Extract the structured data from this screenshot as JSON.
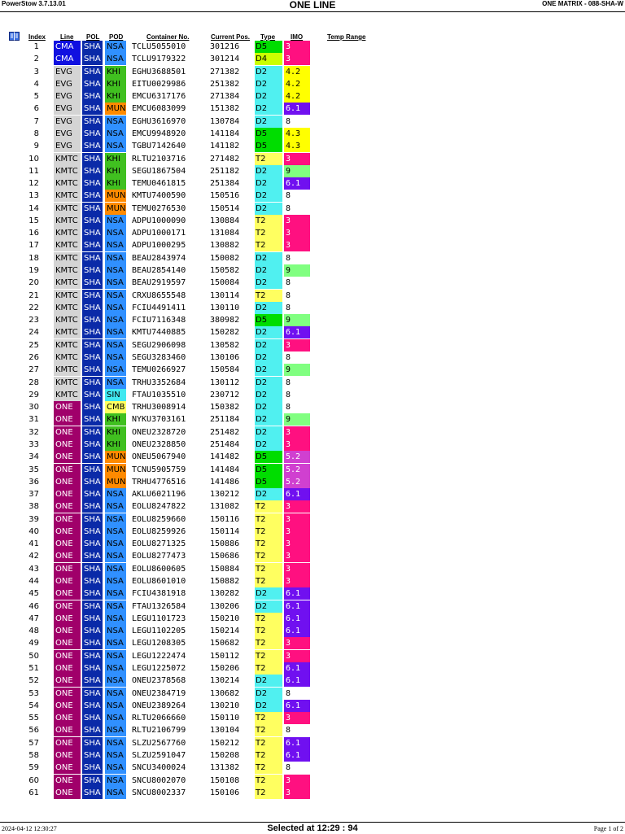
{
  "header": {
    "app": "PowerStow 3.7.13.01",
    "title": "ONE LINE",
    "matrix": "ONE MATRIX - 088-SHA-W"
  },
  "icons": {
    "book": "book-icon"
  },
  "columns": {
    "index": "Index",
    "line": "Line",
    "pol": "POL",
    "pod": "POD",
    "container": "Container No.",
    "position": "Current Pos.",
    "type": "Type",
    "imo": "IMO",
    "temp": "Temp Range"
  },
  "colors": {
    "line": {
      "CMA": "#1010e0",
      "EVG": "#d4d4d4",
      "KMTC": "#d4d4d4",
      "ONE": "#a0006a"
    },
    "pol": "#0a2aa8",
    "pod": {
      "NSA": "#3090ff",
      "KHI": "#40c020",
      "MUN": "#ff8a00",
      "SIN": "#40e8f0",
      "CMB": "#ffff60"
    },
    "type": {
      "D5": "#00dd00",
      "D4": "#ccff00",
      "D2": "#50f0f0",
      "T2": "#ffff60"
    },
    "imo": {
      "3": "#ff1080",
      "4.2": "#ffff00",
      "4.3": "#ffff00",
      "6.1": "#7010f0",
      "9": "#80ff80",
      "5.2": "#d040d0",
      "8": "#ffffff"
    }
  },
  "rows": [
    {
      "i": "1",
      "line": "CMA",
      "pol": "SHA",
      "pod": "NSA",
      "c": "TCLU5055010",
      "p": "301216",
      "t": "D5",
      "imo": "3"
    },
    {
      "i": "2",
      "line": "CMA",
      "pol": "SHA",
      "pod": "NSA",
      "c": "TCLU9179322",
      "p": "301214",
      "t": "D4",
      "imo": "3"
    },
    {
      "i": "3",
      "line": "EVG",
      "pol": "SHA",
      "pod": "KHI",
      "c": "EGHU3688501",
      "p": "271382",
      "t": "D2",
      "imo": "4.2"
    },
    {
      "i": "4",
      "line": "EVG",
      "pol": "SHA",
      "pod": "KHI",
      "c": "EITU0029986",
      "p": "251382",
      "t": "D2",
      "imo": "4.2"
    },
    {
      "i": "5",
      "line": "EVG",
      "pol": "SHA",
      "pod": "KHI",
      "c": "EMCU6317176",
      "p": "271384",
      "t": "D2",
      "imo": "4.2"
    },
    {
      "i": "6",
      "line": "EVG",
      "pol": "SHA",
      "pod": "MUN",
      "c": "EMCU6083099",
      "p": "151382",
      "t": "D2",
      "imo": "6.1"
    },
    {
      "i": "7",
      "line": "EVG",
      "pol": "SHA",
      "pod": "NSA",
      "c": "EGHU3616970",
      "p": "130784",
      "t": "D2",
      "imo": "8"
    },
    {
      "i": "8",
      "line": "EVG",
      "pol": "SHA",
      "pod": "NSA",
      "c": "EMCU9948920",
      "p": "141184",
      "t": "D5",
      "imo": "4.3"
    },
    {
      "i": "9",
      "line": "EVG",
      "pol": "SHA",
      "pod": "NSA",
      "c": "TGBU7142640",
      "p": "141182",
      "t": "D5",
      "imo": "4.3"
    },
    {
      "i": "10",
      "line": "KMTC",
      "pol": "SHA",
      "pod": "KHI",
      "c": "RLTU2103716",
      "p": "271482",
      "t": "T2",
      "imo": "3"
    },
    {
      "i": "11",
      "line": "KMTC",
      "pol": "SHA",
      "pod": "KHI",
      "c": "SEGU1867504",
      "p": "251182",
      "t": "D2",
      "imo": "9"
    },
    {
      "i": "12",
      "line": "KMTC",
      "pol": "SHA",
      "pod": "KHI",
      "c": "TEMU0461815",
      "p": "251384",
      "t": "D2",
      "imo": "6.1"
    },
    {
      "i": "13",
      "line": "KMTC",
      "pol": "SHA",
      "pod": "MUN",
      "c": "KMTU7400590",
      "p": "150516",
      "t": "D2",
      "imo": "8"
    },
    {
      "i": "14",
      "line": "KMTC",
      "pol": "SHA",
      "pod": "MUN",
      "c": "TEMU0276530",
      "p": "150514",
      "t": "D2",
      "imo": "8"
    },
    {
      "i": "15",
      "line": "KMTC",
      "pol": "SHA",
      "pod": "NSA",
      "c": "ADPU1000090",
      "p": "130884",
      "t": "T2",
      "imo": "3"
    },
    {
      "i": "16",
      "line": "KMTC",
      "pol": "SHA",
      "pod": "NSA",
      "c": "ADPU1000171",
      "p": "131084",
      "t": "T2",
      "imo": "3"
    },
    {
      "i": "17",
      "line": "KMTC",
      "pol": "SHA",
      "pod": "NSA",
      "c": "ADPU1000295",
      "p": "130882",
      "t": "T2",
      "imo": "3"
    },
    {
      "i": "18",
      "line": "KMTC",
      "pol": "SHA",
      "pod": "NSA",
      "c": "BEAU2843974",
      "p": "150082",
      "t": "D2",
      "imo": "8"
    },
    {
      "i": "19",
      "line": "KMTC",
      "pol": "SHA",
      "pod": "NSA",
      "c": "BEAU2854140",
      "p": "150582",
      "t": "D2",
      "imo": "9"
    },
    {
      "i": "20",
      "line": "KMTC",
      "pol": "SHA",
      "pod": "NSA",
      "c": "BEAU2919597",
      "p": "150084",
      "t": "D2",
      "imo": "8"
    },
    {
      "i": "21",
      "line": "KMTC",
      "pol": "SHA",
      "pod": "NSA",
      "c": "CRXU8655548",
      "p": "130114",
      "t": "T2",
      "imo": "8"
    },
    {
      "i": "22",
      "line": "KMTC",
      "pol": "SHA",
      "pod": "NSA",
      "c": "FCIU4491411",
      "p": "130110",
      "t": "D2",
      "imo": "8"
    },
    {
      "i": "23",
      "line": "KMTC",
      "pol": "SHA",
      "pod": "NSA",
      "c": "FCIU7116348",
      "p": "380982",
      "t": "D5",
      "imo": "9"
    },
    {
      "i": "24",
      "line": "KMTC",
      "pol": "SHA",
      "pod": "NSA",
      "c": "KMTU7440885",
      "p": "150282",
      "t": "D2",
      "imo": "6.1"
    },
    {
      "i": "25",
      "line": "KMTC",
      "pol": "SHA",
      "pod": "NSA",
      "c": "SEGU2906098",
      "p": "130582",
      "t": "D2",
      "imo": "3"
    },
    {
      "i": "26",
      "line": "KMTC",
      "pol": "SHA",
      "pod": "NSA",
      "c": "SEGU3283460",
      "p": "130106",
      "t": "D2",
      "imo": "8"
    },
    {
      "i": "27",
      "line": "KMTC",
      "pol": "SHA",
      "pod": "NSA",
      "c": "TEMU0266927",
      "p": "150584",
      "t": "D2",
      "imo": "9"
    },
    {
      "i": "28",
      "line": "KMTC",
      "pol": "SHA",
      "pod": "NSA",
      "c": "TRHU3352684",
      "p": "130112",
      "t": "D2",
      "imo": "8"
    },
    {
      "i": "29",
      "line": "KMTC",
      "pol": "SHA",
      "pod": "SIN",
      "c": "FTAU1035510",
      "p": "230712",
      "t": "D2",
      "imo": "8"
    },
    {
      "i": "30",
      "line": "ONE",
      "pol": "SHA",
      "pod": "CMB",
      "c": "TRHU3008914",
      "p": "150382",
      "t": "D2",
      "imo": "8"
    },
    {
      "i": "31",
      "line": "ONE",
      "pol": "SHA",
      "pod": "KHI",
      "c": "NYKU3703161",
      "p": "251184",
      "t": "D2",
      "imo": "9"
    },
    {
      "i": "32",
      "line": "ONE",
      "pol": "SHA",
      "pod": "KHI",
      "c": "ONEU2328720",
      "p": "251482",
      "t": "D2",
      "imo": "3"
    },
    {
      "i": "33",
      "line": "ONE",
      "pol": "SHA",
      "pod": "KHI",
      "c": "ONEU2328850",
      "p": "251484",
      "t": "D2",
      "imo": "3"
    },
    {
      "i": "34",
      "line": "ONE",
      "pol": "SHA",
      "pod": "MUN",
      "c": "ONEU5067940",
      "p": "141482",
      "t": "D5",
      "imo": "5.2"
    },
    {
      "i": "35",
      "line": "ONE",
      "pol": "SHA",
      "pod": "MUN",
      "c": "TCNU5905759",
      "p": "141484",
      "t": "D5",
      "imo": "5.2"
    },
    {
      "i": "36",
      "line": "ONE",
      "pol": "SHA",
      "pod": "MUN",
      "c": "TRHU4776516",
      "p": "141486",
      "t": "D5",
      "imo": "5.2"
    },
    {
      "i": "37",
      "line": "ONE",
      "pol": "SHA",
      "pod": "NSA",
      "c": "AKLU6021196",
      "p": "130212",
      "t": "D2",
      "imo": "6.1"
    },
    {
      "i": "38",
      "line": "ONE",
      "pol": "SHA",
      "pod": "NSA",
      "c": "EOLU8247822",
      "p": "131082",
      "t": "T2",
      "imo": "3"
    },
    {
      "i": "39",
      "line": "ONE",
      "pol": "SHA",
      "pod": "NSA",
      "c": "EOLU8259660",
      "p": "150116",
      "t": "T2",
      "imo": "3"
    },
    {
      "i": "40",
      "line": "ONE",
      "pol": "SHA",
      "pod": "NSA",
      "c": "EOLU8259926",
      "p": "150114",
      "t": "T2",
      "imo": "3"
    },
    {
      "i": "41",
      "line": "ONE",
      "pol": "SHA",
      "pod": "NSA",
      "c": "EOLU8271325",
      "p": "150886",
      "t": "T2",
      "imo": "3"
    },
    {
      "i": "42",
      "line": "ONE",
      "pol": "SHA",
      "pod": "NSA",
      "c": "EOLU8277473",
      "p": "150686",
      "t": "T2",
      "imo": "3"
    },
    {
      "i": "43",
      "line": "ONE",
      "pol": "SHA",
      "pod": "NSA",
      "c": "EOLU8600605",
      "p": "150884",
      "t": "T2",
      "imo": "3"
    },
    {
      "i": "44",
      "line": "ONE",
      "pol": "SHA",
      "pod": "NSA",
      "c": "EOLU8601010",
      "p": "150882",
      "t": "T2",
      "imo": "3"
    },
    {
      "i": "45",
      "line": "ONE",
      "pol": "SHA",
      "pod": "NSA",
      "c": "FCIU4381918",
      "p": "130282",
      "t": "D2",
      "imo": "6.1"
    },
    {
      "i": "46",
      "line": "ONE",
      "pol": "SHA",
      "pod": "NSA",
      "c": "FTAU1326584",
      "p": "130206",
      "t": "D2",
      "imo": "6.1"
    },
    {
      "i": "47",
      "line": "ONE",
      "pol": "SHA",
      "pod": "NSA",
      "c": "LEGU1101723",
      "p": "150210",
      "t": "T2",
      "imo": "6.1"
    },
    {
      "i": "48",
      "line": "ONE",
      "pol": "SHA",
      "pod": "NSA",
      "c": "LEGU1102205",
      "p": "150214",
      "t": "T2",
      "imo": "6.1"
    },
    {
      "i": "49",
      "line": "ONE",
      "pol": "SHA",
      "pod": "NSA",
      "c": "LEGU1208305",
      "p": "150682",
      "t": "T2",
      "imo": "3"
    },
    {
      "i": "50",
      "line": "ONE",
      "pol": "SHA",
      "pod": "NSA",
      "c": "LEGU1222474",
      "p": "150112",
      "t": "T2",
      "imo": "3"
    },
    {
      "i": "51",
      "line": "ONE",
      "pol": "SHA",
      "pod": "NSA",
      "c": "LEGU1225072",
      "p": "150206",
      "t": "T2",
      "imo": "6.1"
    },
    {
      "i": "52",
      "line": "ONE",
      "pol": "SHA",
      "pod": "NSA",
      "c": "ONEU2378568",
      "p": "130214",
      "t": "D2",
      "imo": "6.1"
    },
    {
      "i": "53",
      "line": "ONE",
      "pol": "SHA",
      "pod": "NSA",
      "c": "ONEU2384719",
      "p": "130682",
      "t": "D2",
      "imo": "8"
    },
    {
      "i": "54",
      "line": "ONE",
      "pol": "SHA",
      "pod": "NSA",
      "c": "ONEU2389264",
      "p": "130210",
      "t": "D2",
      "imo": "6.1"
    },
    {
      "i": "55",
      "line": "ONE",
      "pol": "SHA",
      "pod": "NSA",
      "c": "RLTU2066660",
      "p": "150110",
      "t": "T2",
      "imo": "3"
    },
    {
      "i": "56",
      "line": "ONE",
      "pol": "SHA",
      "pod": "NSA",
      "c": "RLTU2106799",
      "p": "130104",
      "t": "T2",
      "imo": "8"
    },
    {
      "i": "57",
      "line": "ONE",
      "pol": "SHA",
      "pod": "NSA",
      "c": "SLZU2567760",
      "p": "150212",
      "t": "T2",
      "imo": "6.1"
    },
    {
      "i": "58",
      "line": "ONE",
      "pol": "SHA",
      "pod": "NSA",
      "c": "SLZU2591047",
      "p": "150208",
      "t": "T2",
      "imo": "6.1"
    },
    {
      "i": "59",
      "line": "ONE",
      "pol": "SHA",
      "pod": "NSA",
      "c": "SNCU3400024",
      "p": "131382",
      "t": "T2",
      "imo": "8"
    },
    {
      "i": "60",
      "line": "ONE",
      "pol": "SHA",
      "pod": "NSA",
      "c": "SNCU8002070",
      "p": "150108",
      "t": "T2",
      "imo": "3"
    },
    {
      "i": "61",
      "line": "ONE",
      "pol": "SHA",
      "pod": "NSA",
      "c": "SNCU8002337",
      "p": "150106",
      "t": "T2",
      "imo": "3"
    }
  ],
  "footer": {
    "timestamp": "2024-04-12   12:30:27",
    "selected": "Selected at 12:29 : 94",
    "page": "Page 1 of 2"
  }
}
